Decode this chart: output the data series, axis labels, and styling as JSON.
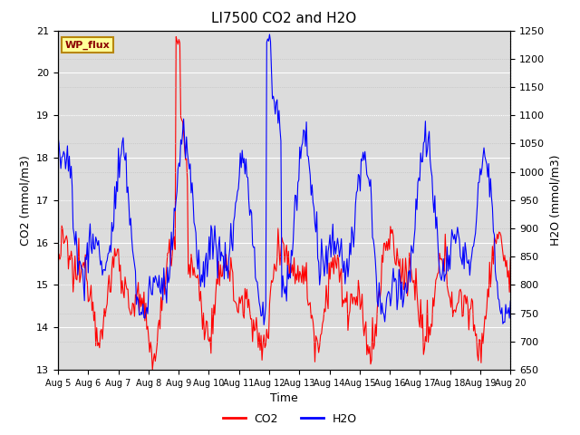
{
  "title": "LI7500 CO2 and H2O",
  "xlabel": "Time",
  "ylabel_left": "CO2 (mmol/m3)",
  "ylabel_right": "H2O (mmol/m3)",
  "ylim_left": [
    13.0,
    21.0
  ],
  "ylim_right": [
    650,
    1250
  ],
  "yticks_left": [
    13.0,
    14.0,
    15.0,
    16.0,
    17.0,
    18.0,
    19.0,
    20.0,
    21.0
  ],
  "yticks_right": [
    650,
    700,
    750,
    800,
    850,
    900,
    950,
    1000,
    1050,
    1100,
    1150,
    1200,
    1250
  ],
  "xtick_labels": [
    "Aug 5",
    "Aug 6",
    "Aug 7",
    "Aug 8",
    "Aug 9",
    "Aug 10",
    "Aug 11",
    "Aug 12",
    "Aug 13",
    "Aug 14",
    "Aug 15",
    "Aug 16",
    "Aug 17",
    "Aug 18",
    "Aug 19",
    "Aug 20"
  ],
  "annotation_text": "WP_flux",
  "annotation_color": "#8B0000",
  "annotation_bg": "#FFFF99",
  "annotation_border": "#B8860B",
  "line_co2_color": "#FF0000",
  "line_h2o_color": "#0000FF",
  "legend_labels": [
    "CO2",
    "H2O"
  ],
  "bg_color": "#DCDCDC",
  "fig_bg_color": "#FFFFFF",
  "grid_color": "#FFFFFF",
  "title_fontsize": 11,
  "axis_label_fontsize": 9,
  "tick_fontsize": 8,
  "n_points": 480,
  "seed": 12345
}
